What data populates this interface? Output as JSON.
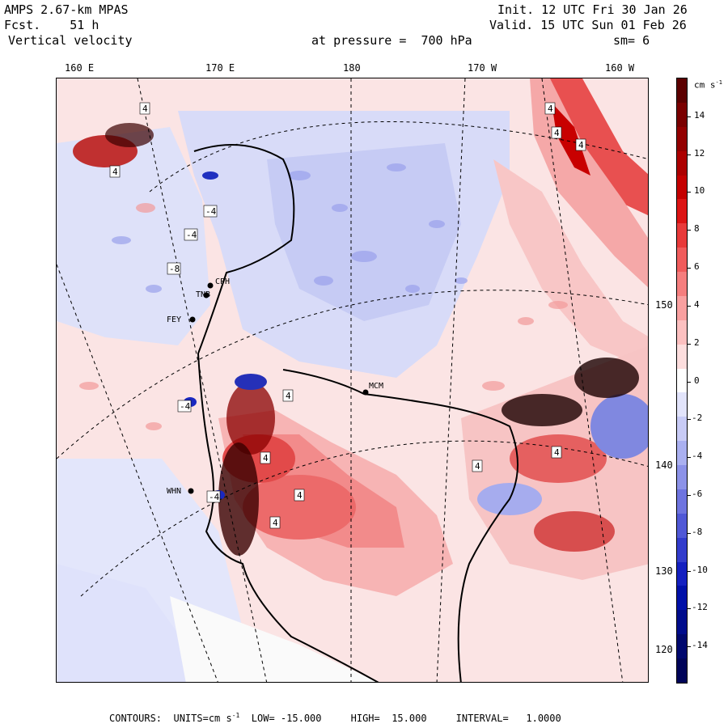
{
  "header": {
    "model": "AMPS 2.67-km MPAS",
    "forecast": "Fcst.    51 h",
    "field": "Vertical velocity",
    "init": "Init. 12 UTC Fri 30 Jan 26",
    "valid": "Valid. 15 UTC Sun 01 Feb 26",
    "pressure": "at pressure =  700 hPa",
    "smoothing": "sm= 6"
  },
  "longitude_labels": [
    "160 E",
    "170 E",
    "180",
    "170 W",
    "160 W"
  ],
  "latitude_labels": [
    "150 W",
    "140 W",
    "130 W",
    "120 W"
  ],
  "station_labels": [
    "CPH",
    "TNB",
    "FEY",
    "MCM",
    "WHN"
  ],
  "contour_labels": [
    "4",
    "-4",
    "-8"
  ],
  "colorbar": {
    "units": "cm s-1",
    "units_base": "cm s",
    "units_exp": "-1",
    "tick_labels": [
      "14",
      "12",
      "10",
      "8",
      "6",
      "4",
      "2",
      "0",
      "-2",
      "-4",
      "-6",
      "-8",
      "-10",
      "-12",
      "-14"
    ],
    "colors": [
      "#5c0000",
      "#7a0000",
      "#930000",
      "#ac0000",
      "#c40000",
      "#dc1414",
      "#e83a3a",
      "#f05c5c",
      "#f57e7e",
      "#f9a0a0",
      "#fcc0c0",
      "#fddede",
      "#ffffff",
      "#e2e4fb",
      "#c8cbf6",
      "#aab0f0",
      "#8c92e8",
      "#6e74df",
      "#5058d6",
      "#323ccc",
      "#1420c0",
      "#0010a8",
      "#000c8c",
      "#00086e",
      "#000458"
    ]
  },
  "footer": {
    "text": "CONTOURS:  UNITS=cm s-1  LOW= -15.000     HIGH=  15.000     INTERVAL=   1.0000",
    "contours_label": "CONTOURS:  UNITS=cm s",
    "units_exp": "-1",
    "rest": "  LOW= -15.000     HIGH=  15.000     INTERVAL=   1.0000"
  }
}
